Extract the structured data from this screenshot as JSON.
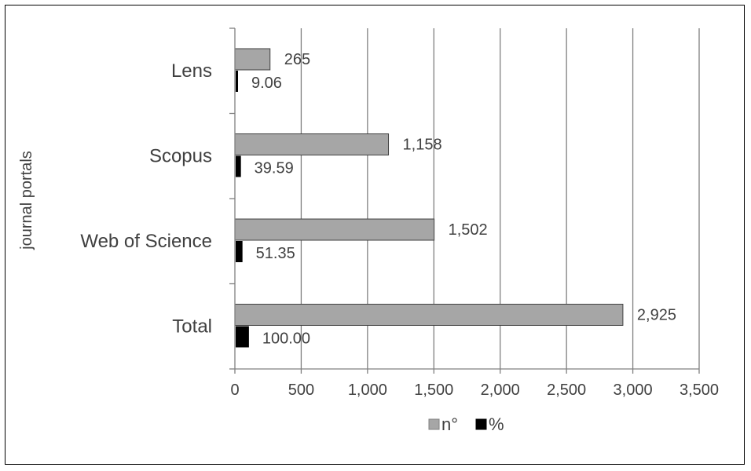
{
  "chart_data": {
    "type": "bar",
    "orientation": "horizontal",
    "categories": [
      "Lens",
      "Scopus",
      "Web of Science",
      "Total"
    ],
    "series": [
      {
        "name": "n°",
        "values": [
          265,
          1158,
          1502,
          2925
        ],
        "labels": [
          "265",
          "1,158",
          "1,502",
          "2,925"
        ],
        "color": "#a6a6a6"
      },
      {
        "name": "%",
        "values": [
          9.06,
          39.59,
          51.35,
          100.0
        ],
        "labels": [
          "9.06",
          "39.59",
          "51.35",
          "100.00"
        ],
        "color": "#000000"
      }
    ],
    "xlabel": "",
    "ylabel": "journal portals",
    "xlim": [
      0,
      3500
    ],
    "xticks": [
      0,
      500,
      1000,
      1500,
      2000,
      2500,
      3000,
      3500
    ],
    "xtick_labels": [
      "0",
      "500",
      "1,000",
      "1,500",
      "2,000",
      "2,500",
      "3,000",
      "3,500"
    ],
    "grid": "vertical",
    "legend": "bottom"
  }
}
